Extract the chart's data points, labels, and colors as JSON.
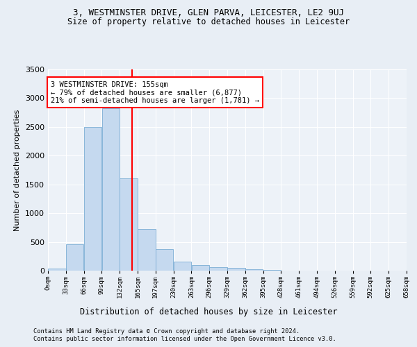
{
  "title1": "3, WESTMINSTER DRIVE, GLEN PARVA, LEICESTER, LE2 9UJ",
  "title2": "Size of property relative to detached houses in Leicester",
  "xlabel": "Distribution of detached houses by size in Leicester",
  "ylabel": "Number of detached properties",
  "bar_color": "#c5d9ef",
  "bar_edge_color": "#7badd4",
  "vline_color": "red",
  "vline_x": 4,
  "annotation_line1": "3 WESTMINSTER DRIVE: 155sqm",
  "annotation_line2": "← 79% of detached houses are smaller (6,877)",
  "annotation_line3": "21% of semi-detached houses are larger (1,781) →",
  "bin_edges": [
    0,
    1,
    2,
    3,
    4,
    5,
    6,
    7,
    8,
    9,
    10,
    11,
    12,
    13,
    14,
    15,
    16,
    17,
    18,
    19,
    20
  ],
  "bin_labels": [
    "0sqm",
    "33sqm",
    "66sqm",
    "99sqm",
    "132sqm",
    "165sqm",
    "197sqm",
    "230sqm",
    "263sqm",
    "296sqm",
    "329sqm",
    "362sqm",
    "395sqm",
    "428sqm",
    "461sqm",
    "494sqm",
    "526sqm",
    "559sqm",
    "592sqm",
    "625sqm",
    "658sqm"
  ],
  "counts": [
    40,
    460,
    2500,
    2820,
    1600,
    730,
    380,
    155,
    100,
    65,
    50,
    30,
    10,
    5,
    0,
    0,
    0,
    0,
    0,
    0
  ],
  "ylim": [
    0,
    3500
  ],
  "yticks": [
    0,
    500,
    1000,
    1500,
    2000,
    2500,
    3000,
    3500
  ],
  "footer1": "Contains HM Land Registry data © Crown copyright and database right 2024.",
  "footer2": "Contains public sector information licensed under the Open Government Licence v3.0.",
  "bg_color": "#e8eef5",
  "plot_bg_color": "#edf2f8",
  "grid_color": "#ffffff",
  "title_fontsize": 9,
  "bar_fontsize": 7,
  "ylabel_fontsize": 8
}
